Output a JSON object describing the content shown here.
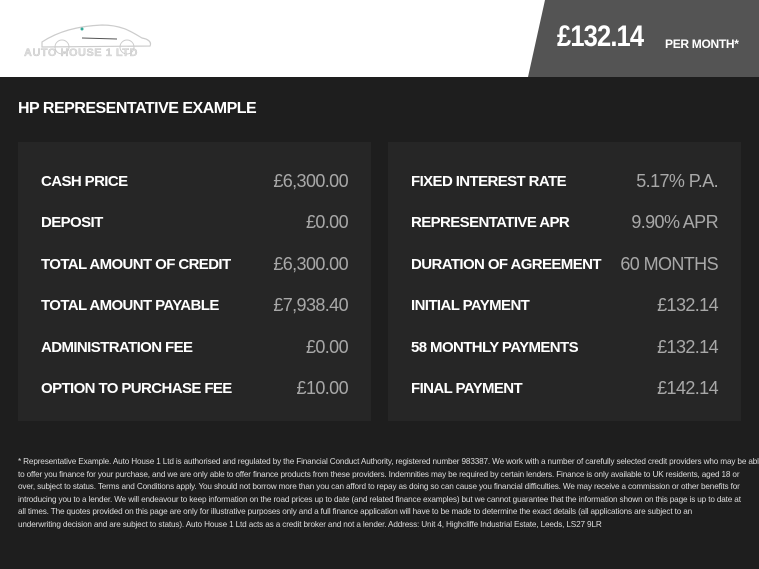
{
  "header": {
    "logo_text": "AUTO HOUSE 1 LTD",
    "price": "£132.14",
    "per_month": "PER MONTH*"
  },
  "title": "HP REPRESENTATIVE EXAMPLE",
  "left": [
    {
      "label": "CASH PRICE",
      "value": "£6,300.00"
    },
    {
      "label": "DEPOSIT",
      "value": "£0.00"
    },
    {
      "label": "TOTAL AMOUNT OF CREDIT",
      "value": "£6,300.00"
    },
    {
      "label": "TOTAL AMOUNT PAYABLE",
      "value": "£7,938.40"
    },
    {
      "label": "ADMINISTRATION FEE",
      "value": "£0.00"
    },
    {
      "label": "OPTION TO PURCHASE FEE",
      "value": "£10.00"
    }
  ],
  "right": [
    {
      "label": "FIXED INTEREST RATE",
      "value": "5.17% P.A."
    },
    {
      "label": "REPRESENTATIVE APR",
      "value": "9.90% APR"
    },
    {
      "label": "DURATION OF AGREEMENT",
      "value": "60 MONTHS"
    },
    {
      "label": "INITIAL PAYMENT",
      "value": "£132.14"
    },
    {
      "label": "58 MONTHLY PAYMENTS",
      "value": "£132.14"
    },
    {
      "label": "FINAL PAYMENT",
      "value": "£142.14"
    }
  ],
  "footer": [
    "* Representative Example. Auto House 1 Ltd is authorised and regulated by the Financial Conduct Authority, registered number 983387. We work with a number of carefully selected credit providers who may be able",
    "to offer you finance for your purchase, and we are only able to offer finance products from these providers. Indemnities may be required by certain lenders. Finance is only available to UK residents, aged 18 or",
    "over, subject to status. Terms and Conditions apply. You should not borrow more than you can afford to repay as doing so can cause you financial difficulties. We may receive a commission or other benefits for",
    "introducing you to a lender. We will endeavour to keep information on the road prices up to date (and related finance examples) but we cannot guarantee that the information shown on this page is up to date at",
    "all times. The quotes provided on this page are only for illustrative purposes only and a full finance application will have to be made to determine the exact details (all applications are subject to an",
    "underwriting decision and are subject to status). Auto House 1 Ltd acts as a credit broker and not a lender. Address: Unit 4, Highcliffe Industrial Estate, Leeds, LS27 9LR"
  ]
}
